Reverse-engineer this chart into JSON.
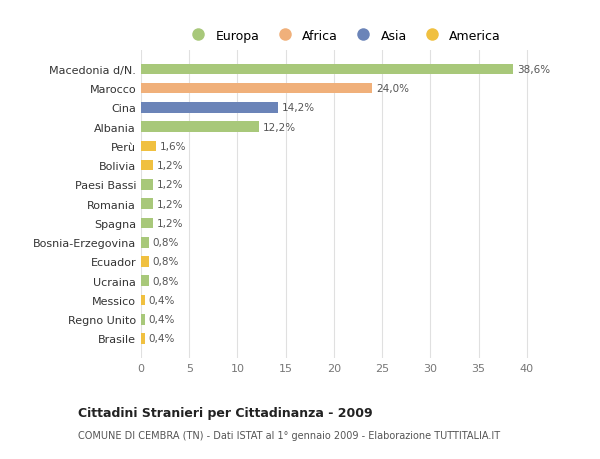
{
  "categories": [
    "Brasile",
    "Regno Unito",
    "Messico",
    "Ucraina",
    "Ecuador",
    "Bosnia-Erzegovina",
    "Spagna",
    "Romania",
    "Paesi Bassi",
    "Bolivia",
    "Perù",
    "Albania",
    "Cina",
    "Marocco",
    "Macedonia d/N."
  ],
  "values": [
    0.4,
    0.4,
    0.4,
    0.8,
    0.8,
    0.8,
    1.2,
    1.2,
    1.2,
    1.2,
    1.6,
    12.2,
    14.2,
    24.0,
    38.6
  ],
  "labels": [
    "0,4%",
    "0,4%",
    "0,4%",
    "0,8%",
    "0,8%",
    "0,8%",
    "1,2%",
    "1,2%",
    "1,2%",
    "1,2%",
    "1,6%",
    "12,2%",
    "14,2%",
    "24,0%",
    "38,6%"
  ],
  "colors": [
    "#f0c040",
    "#a8c87a",
    "#f0c040",
    "#a8c87a",
    "#f0c040",
    "#a8c87a",
    "#a8c87a",
    "#a8c87a",
    "#a8c87a",
    "#f0c040",
    "#f0c040",
    "#a8c87a",
    "#6b84b8",
    "#f0b07a",
    "#a8c87a"
  ],
  "legend_labels": [
    "Europa",
    "Africa",
    "Asia",
    "America"
  ],
  "legend_colors": [
    "#a8c87a",
    "#f0b07a",
    "#6b84b8",
    "#f0c040"
  ],
  "title": "Cittadini Stranieri per Cittadinanza - 2009",
  "subtitle": "COMUNE DI CEMBRA (TN) - Dati ISTAT al 1° gennaio 2009 - Elaborazione TUTTITALIA.IT",
  "xlim": [
    0,
    42
  ],
  "background_color": "#ffffff",
  "grid_color": "#e0e0e0",
  "bar_height": 0.55
}
